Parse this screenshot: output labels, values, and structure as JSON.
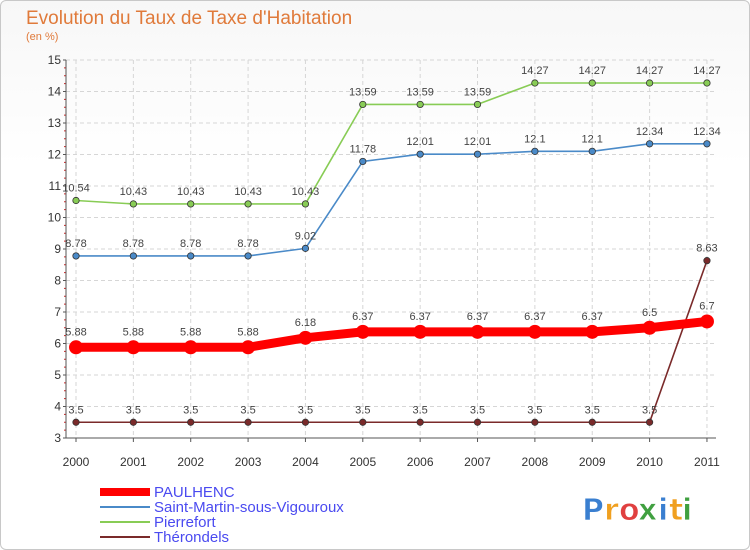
{
  "chart_data": {
    "type": "line",
    "title": "Evolution du Taux de Taxe d'Habitation",
    "subtitle": "(en %)",
    "x": [
      "2000",
      "2001",
      "2002",
      "2003",
      "2004",
      "2005",
      "2006",
      "2007",
      "2008",
      "2009",
      "2010",
      "2011"
    ],
    "ylim": [
      3,
      15
    ],
    "yticks": [
      "3",
      "4",
      "5",
      "6",
      "7",
      "8",
      "9",
      "10",
      "11",
      "12",
      "13",
      "14",
      "15"
    ],
    "grid": true,
    "legend_position": "bottom-left",
    "series": [
      {
        "name": "PAULHENC",
        "color": "#ff0000",
        "values": [
          5.88,
          5.88,
          5.88,
          5.88,
          6.18,
          6.37,
          6.37,
          6.37,
          6.37,
          6.37,
          6.5,
          6.7
        ],
        "labels": [
          "5.88",
          "5.88",
          "5.88",
          "5.88",
          "6.18",
          "6.37",
          "6.37",
          "6.37",
          "6.37",
          "6.37",
          "6.5",
          "6.7"
        ]
      },
      {
        "name": "Saint-Martin-sous-Vigouroux",
        "color": "#4a8ac8",
        "values": [
          8.78,
          8.78,
          8.78,
          8.78,
          9.02,
          11.78,
          12.01,
          12.01,
          12.1,
          12.1,
          12.34,
          12.34
        ],
        "labels": [
          "8.78",
          "8.78",
          "8.78",
          "8.78",
          "9.02",
          "11.78",
          "12.01",
          "12.01",
          "12.1",
          "12.1",
          "12.34",
          "12.34"
        ]
      },
      {
        "name": "Pierrefort",
        "color": "#88cc55",
        "values": [
          10.54,
          10.43,
          10.43,
          10.43,
          10.43,
          13.59,
          13.59,
          13.59,
          14.27,
          14.27,
          14.27,
          14.27
        ],
        "labels": [
          "10.54",
          "10.43",
          "10.43",
          "10.43",
          "10.43",
          "13.59",
          "13.59",
          "13.59",
          "14.27",
          "14.27",
          "14.27",
          "14.27"
        ]
      },
      {
        "name": "Thérondels",
        "color": "#7a2a2a",
        "values": [
          3.5,
          3.5,
          3.5,
          3.5,
          3.5,
          3.5,
          3.5,
          3.5,
          3.5,
          3.5,
          3.5,
          8.63
        ],
        "labels": [
          "3.5",
          "3.5",
          "3.5",
          "3.5",
          "3.5",
          "3.5",
          "3.5",
          "3.5",
          "3.5",
          "3.5",
          "3.5",
          "8.63"
        ]
      }
    ]
  },
  "logo": {
    "letters": [
      "P",
      "r",
      "o",
      "x",
      "i",
      "t",
      "i"
    ],
    "colors": [
      "#3a7fd0",
      "#f0a020",
      "#e04040",
      "#40a040",
      "#3a7fd0",
      "#f0a020",
      "#40a040"
    ]
  }
}
